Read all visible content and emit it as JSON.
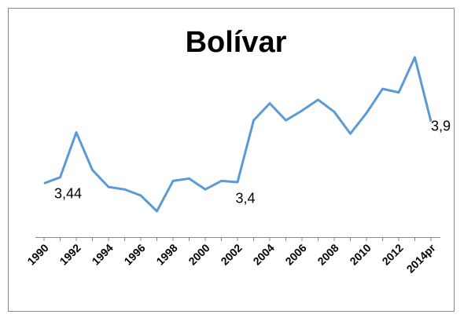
{
  "chart_data": {
    "type": "line",
    "title": "Bolívar",
    "categories": [
      "1990",
      null,
      "1992",
      null,
      "1994",
      null,
      "1996",
      null,
      "1998",
      null,
      "2000",
      null,
      "2002",
      null,
      "2004",
      null,
      "2006",
      null,
      "2008",
      null,
      "2010",
      null,
      "2012",
      null,
      "2014pr"
    ],
    "series": [
      {
        "color": "#5b9bd5",
        "values": [
          3.39,
          3.44,
          3.81,
          3.5,
          3.36,
          3.34,
          3.29,
          3.16,
          3.41,
          3.43,
          3.34,
          3.41,
          3.4,
          3.91,
          4.05,
          3.91,
          3.99,
          4.08,
          3.98,
          3.8,
          3.97,
          4.17,
          4.14,
          4.43,
          3.9
        ],
        "value_labels": [
          null,
          "3,44",
          null,
          null,
          null,
          null,
          null,
          null,
          null,
          null,
          null,
          null,
          "3,4",
          null,
          null,
          null,
          null,
          null,
          null,
          null,
          null,
          null,
          null,
          null,
          "3,9"
        ]
      }
    ]
  }
}
